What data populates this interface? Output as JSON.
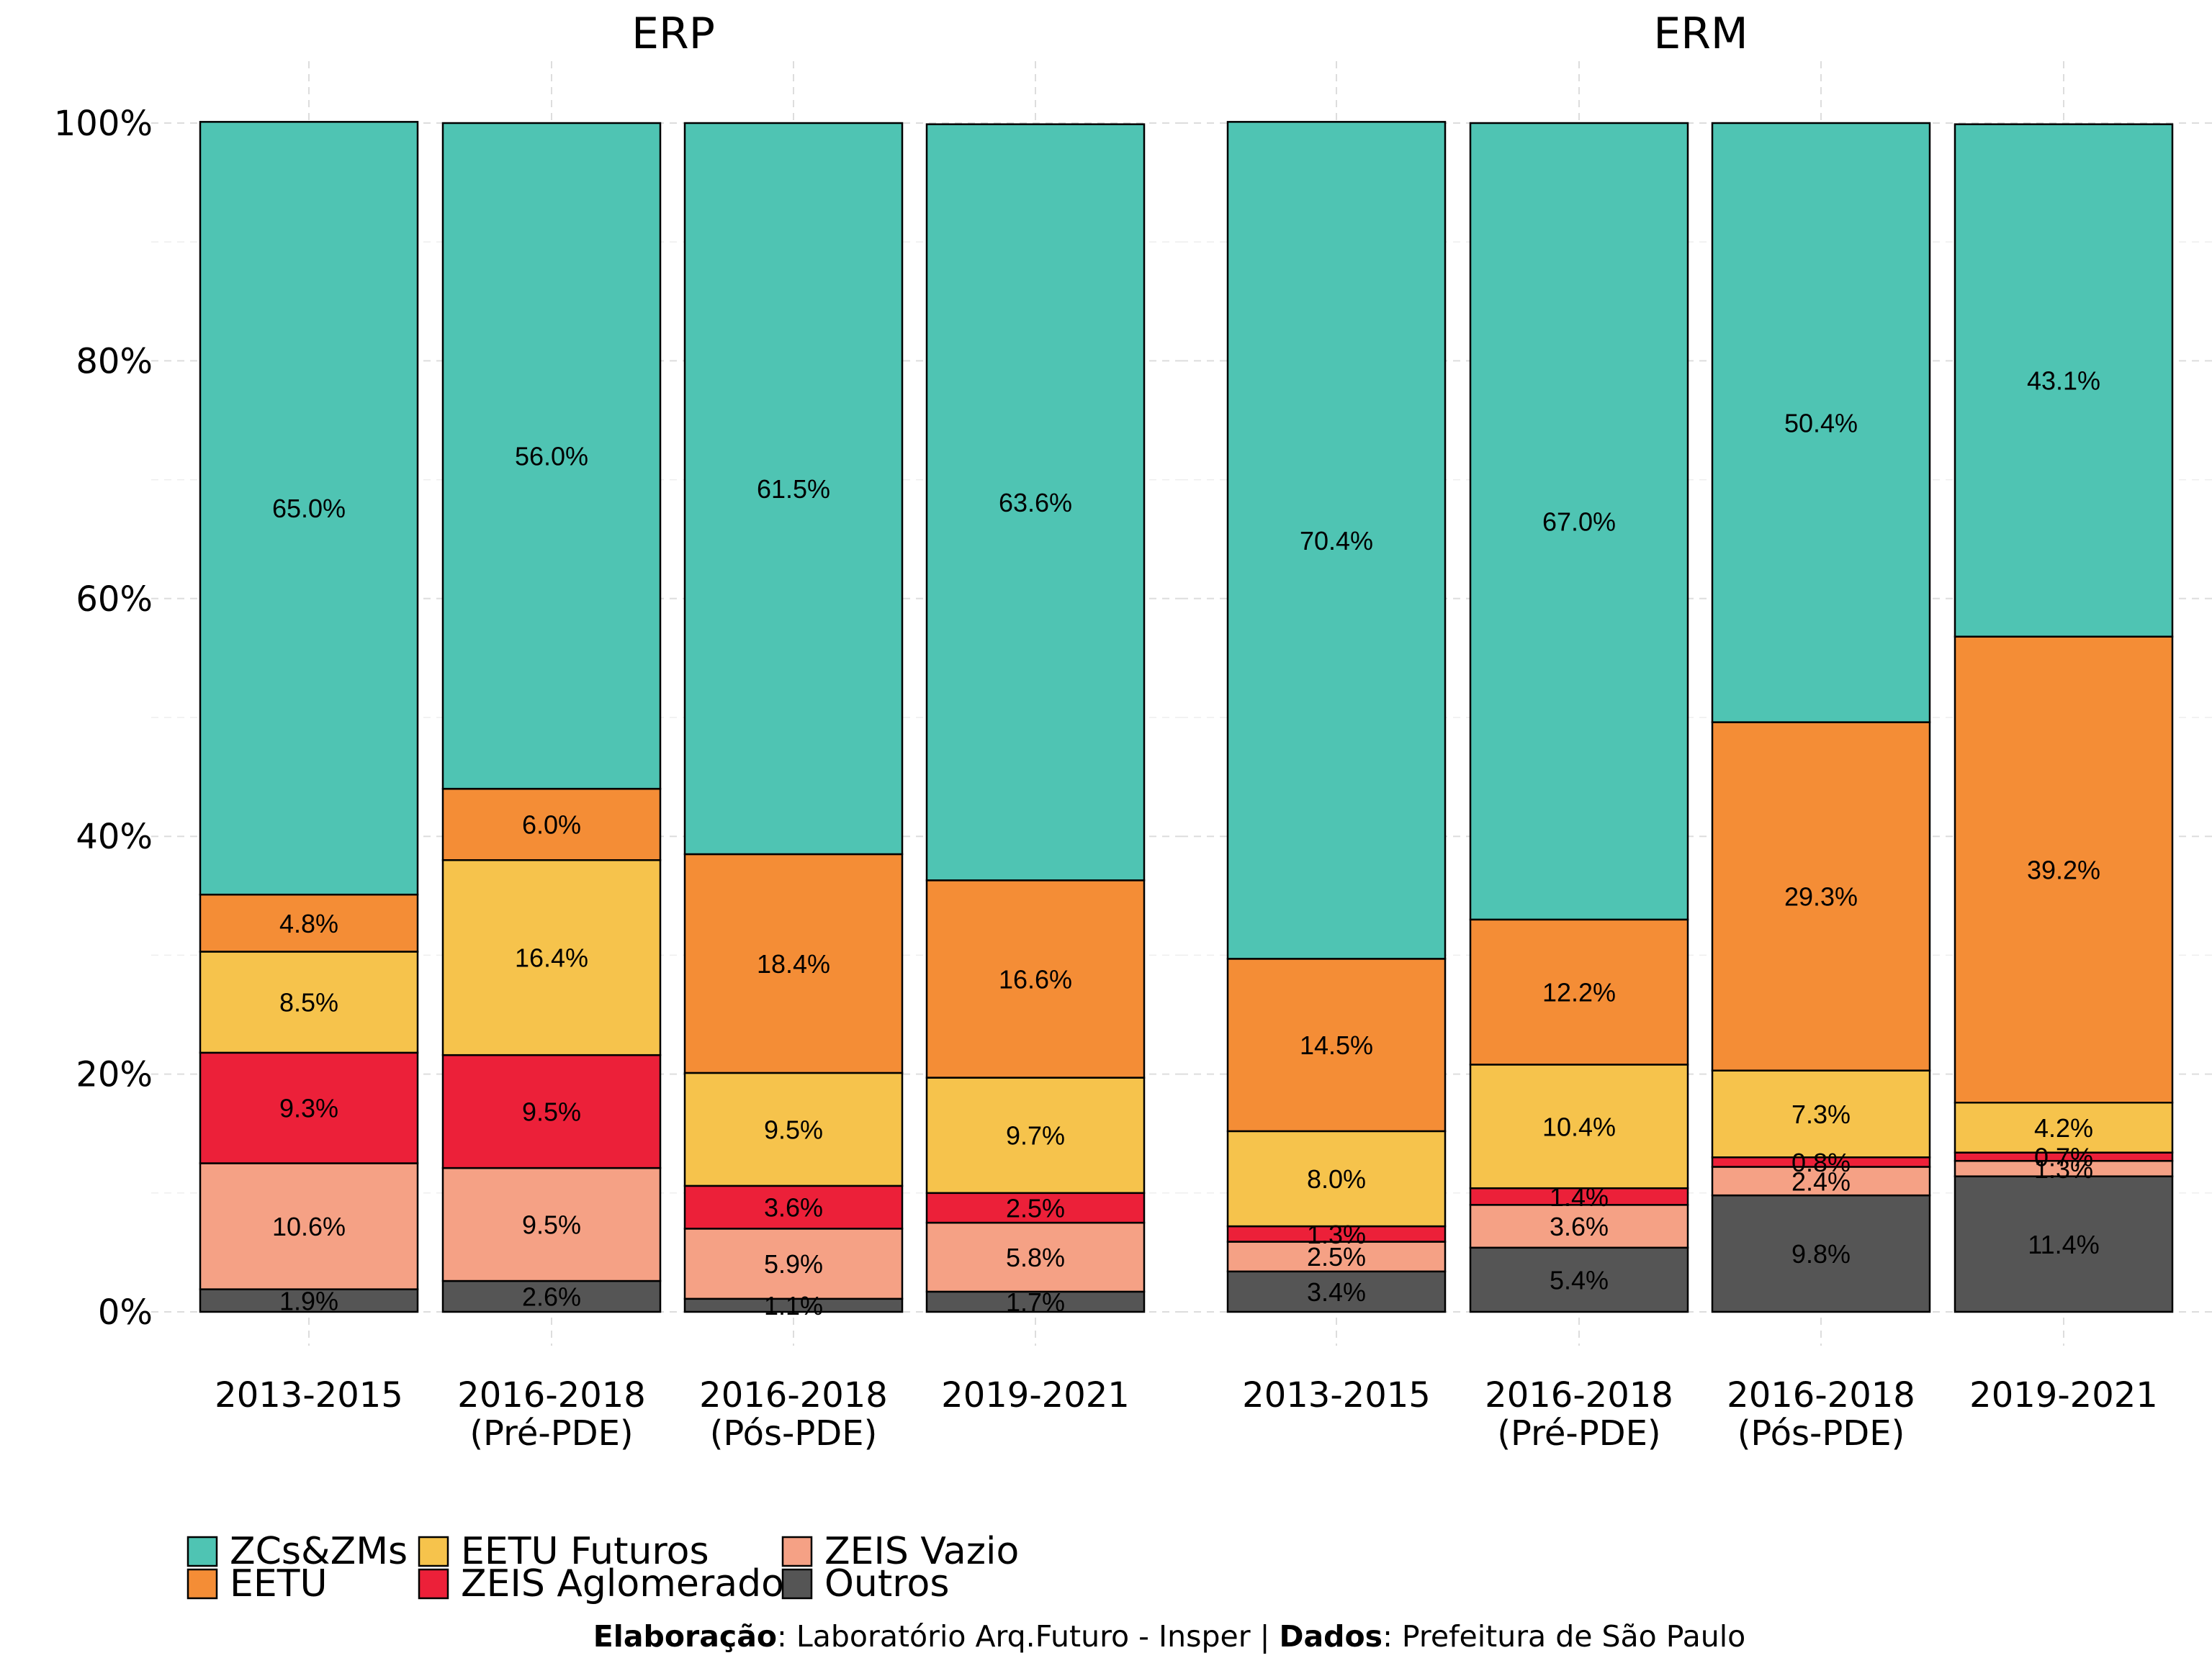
{
  "caption": {
    "elab_label": "Elaboração",
    "elab_text": ": Laboratório Arq.Futuro - Insper | ",
    "dados_label": "Dados",
    "dados_text": ": Prefeitura de São Paulo"
  },
  "chart_data": {
    "type": "bar",
    "stacked": true,
    "ylim": [
      0,
      100
    ],
    "y_ticks": [
      "0%",
      "20%",
      "40%",
      "60%",
      "80%",
      "100%"
    ],
    "grid": true,
    "legend_position": "bottom",
    "categories": [
      [
        "2013-2015"
      ],
      [
        "2016-2018",
        "(Pré-PDE)"
      ],
      [
        "2016-2018",
        "(Pós-PDE)"
      ],
      [
        "2019-2021"
      ]
    ],
    "series": [
      {
        "name": "Outros",
        "color": "#555555"
      },
      {
        "name": "ZEIS Vazio",
        "color": "#F5A185"
      },
      {
        "name": "ZEIS Aglomerado",
        "color": "#EC2039"
      },
      {
        "name": "EETU Futuros",
        "color": "#F6C34C"
      },
      {
        "name": "EETU",
        "color": "#F48D36"
      },
      {
        "name": "ZCs&ZMs",
        "color": "#4FC4B3"
      }
    ],
    "legend_order": [
      "ZCs&ZMs",
      "EETU",
      "EETU Futuros",
      "ZEIS Aglomerado",
      "ZEIS Vazio",
      "Outros"
    ],
    "panels": [
      {
        "title": "ERP",
        "bars": [
          {
            "values": [
              1.9,
              10.6,
              9.3,
              8.5,
              4.8,
              65.0
            ],
            "labels": [
              "1.9%",
              "10.6%",
              "9.3%",
              "8.5%",
              "4.8%",
              "65.0%"
            ]
          },
          {
            "values": [
              2.6,
              9.5,
              9.5,
              16.4,
              6.0,
              56.0
            ],
            "labels": [
              "2.6%",
              "9.5%",
              "9.5%",
              "16.4%",
              "6.0%",
              "56.0%"
            ]
          },
          {
            "values": [
              1.1,
              5.9,
              3.6,
              9.5,
              18.4,
              61.5
            ],
            "labels": [
              "1.1%",
              "5.9%",
              "3.6%",
              "9.5%",
              "18.4%",
              "61.5%"
            ]
          },
          {
            "values": [
              1.7,
              5.8,
              2.5,
              9.7,
              16.6,
              63.6
            ],
            "labels": [
              "1.7%",
              "5.8%",
              "2.5%",
              "9.7%",
              "16.6%",
              "63.6%"
            ]
          }
        ]
      },
      {
        "title": "ERM",
        "bars": [
          {
            "values": [
              3.4,
              2.5,
              1.3,
              8.0,
              14.5,
              70.4
            ],
            "labels": [
              "3.4%",
              "2.5%",
              "1.3%",
              "8.0%",
              "14.5%",
              "70.4%"
            ]
          },
          {
            "values": [
              5.4,
              3.6,
              1.4,
              10.4,
              12.2,
              67.0
            ],
            "labels": [
              "5.4%",
              "3.6%",
              "1.4%",
              "10.4%",
              "12.2%",
              "67.0%"
            ]
          },
          {
            "values": [
              9.8,
              2.4,
              0.8,
              7.3,
              29.3,
              50.4
            ],
            "labels": [
              "9.8%",
              "2.4%",
              "0.8%",
              "7.3%",
              "29.3%",
              "50.4%"
            ]
          },
          {
            "values": [
              11.4,
              1.3,
              0.7,
              4.2,
              39.2,
              43.1
            ],
            "labels": [
              "11.4%",
              "1.3%",
              "0.7%",
              "4.2%",
              "39.2%",
              "43.1%"
            ]
          }
        ]
      }
    ]
  }
}
